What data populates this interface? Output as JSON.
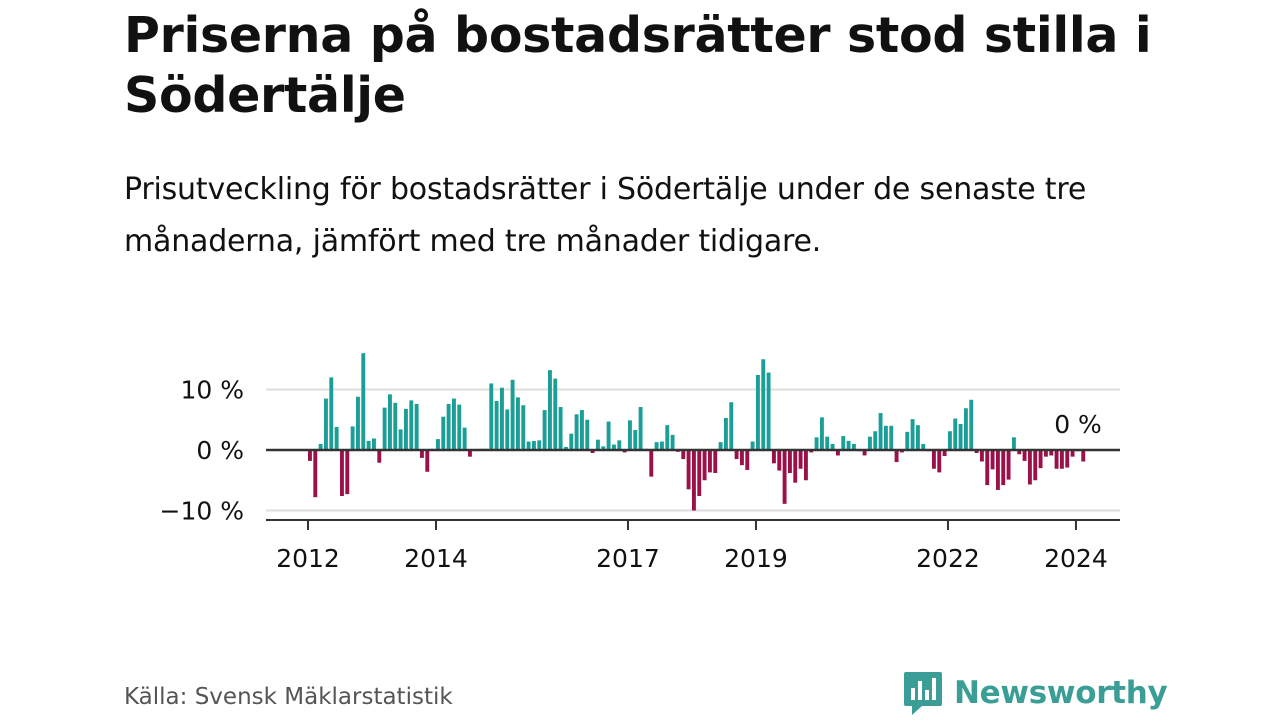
{
  "title": "Priserna på bostadsrätter stod stilla i Södertälje",
  "subtitle": "Prisutveckling för bostadsrätter i Södertälje under de senaste tre månaderna, jämfört med tre månader tidigare.",
  "source": "Källa: Svensk Mäklarstatistik",
  "brand": {
    "name": "Newsworthy",
    "icon": "newsworthy-logo-icon"
  },
  "colors": {
    "positive": "#1a9e96",
    "negative": "#9c1049",
    "axis": "#333333",
    "grid": "#dddddd",
    "text": "#111111"
  },
  "chart_data": {
    "type": "bar",
    "title": "Prisutveckling för bostadsrätter i Södertälje",
    "xlabel": "",
    "ylabel": "",
    "ylim": [
      -10,
      16
    ],
    "x_range": [
      "2012-01",
      "2024-12"
    ],
    "start_month": "2012-01",
    "y_ticks": [
      {
        "value": 10,
        "label": "10 %"
      },
      {
        "value": 0,
        "label": "0 %"
      },
      {
        "value": -10,
        "label": "−10 %"
      }
    ],
    "x_ticks": [
      "2012",
      "2014",
      "2017",
      "2019",
      "2022",
      "2024"
    ],
    "annotation": "0 %",
    "values": [
      -1.8,
      -7.8,
      1.0,
      8.5,
      12.0,
      3.8,
      -7.6,
      -7.3,
      3.9,
      8.8,
      16.0,
      1.5,
      1.9,
      -2.1,
      7.0,
      9.2,
      7.8,
      3.4,
      6.8,
      8.2,
      7.6,
      -1.3,
      -3.6,
      0.2,
      1.8,
      5.5,
      7.6,
      8.5,
      7.5,
      3.7,
      -1.1,
      0.1,
      0.2,
      0.2,
      11.0,
      8.1,
      10.3,
      6.7,
      11.6,
      8.7,
      7.4,
      1.4,
      1.5,
      1.6,
      6.6,
      13.2,
      11.8,
      7.1,
      0.5,
      2.7,
      5.9,
      6.6,
      5.0,
      -0.5,
      1.7,
      0.6,
      4.7,
      0.9,
      1.6,
      -0.4,
      4.9,
      3.3,
      7.1,
      0.2,
      -4.4,
      1.3,
      1.4,
      4.1,
      2.5,
      -0.3,
      -1.5,
      -6.5,
      -10.0,
      -7.6,
      -5.0,
      -3.7,
      -3.8,
      1.3,
      5.3,
      7.9,
      -1.5,
      -2.5,
      -3.3,
      1.4,
      12.4,
      15.0,
      12.8,
      -2.2,
      -3.4,
      -8.9,
      -3.8,
      -5.4,
      -3.1,
      -5.0,
      -0.4,
      2.1,
      5.4,
      2.2,
      1.0,
      -0.9,
      2.3,
      1.5,
      1.0,
      -0.2,
      -0.9,
      2.2,
      3.1,
      6.1,
      4.0,
      4.0,
      -2.0,
      -0.4,
      3.0,
      5.1,
      4.1,
      1.0,
      -0.2,
      -3.1,
      -3.7,
      -1.0,
      3.1,
      5.2,
      4.3,
      6.9,
      8.3,
      -0.5,
      -1.9,
      -5.8,
      -3.2,
      -6.6,
      -5.8,
      -4.9,
      2.1,
      -0.7,
      -1.8,
      -5.7,
      -5.0,
      -3.0,
      -1.1,
      -0.9,
      -3.1,
      -3.1,
      -2.9,
      -1.1,
      -0.2,
      -1.9,
      0.0
    ]
  }
}
